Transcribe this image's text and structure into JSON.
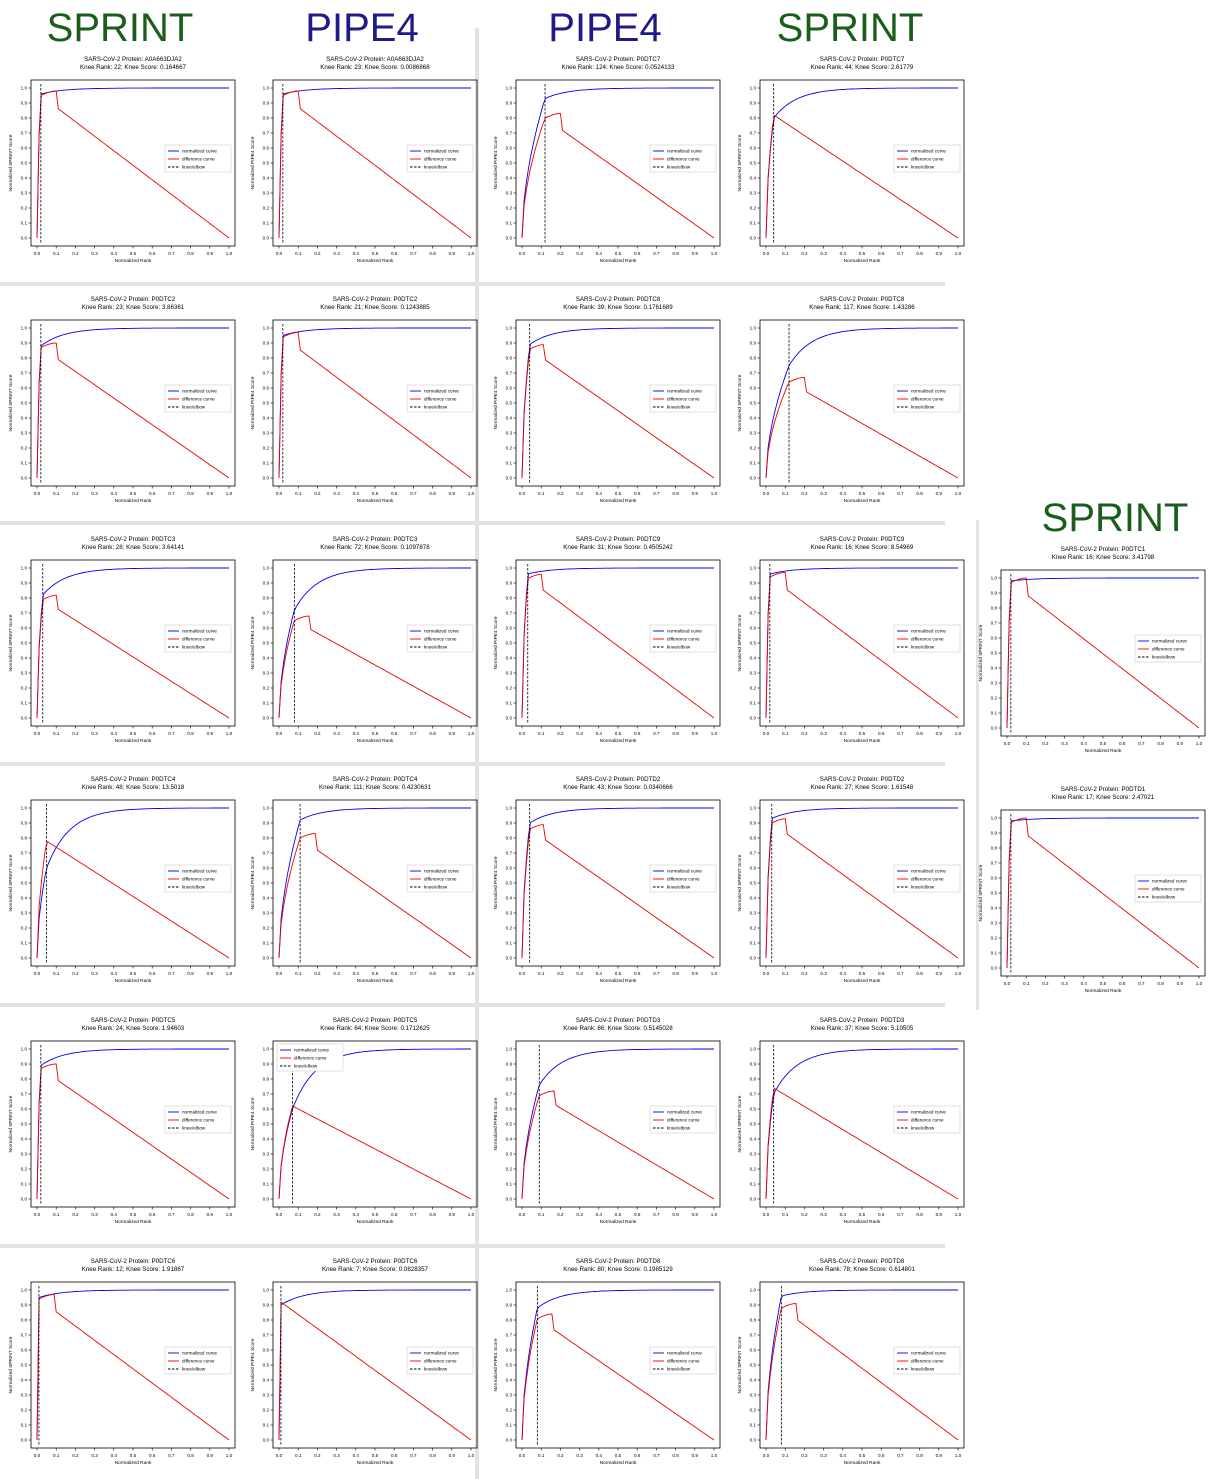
{
  "column_headers": [
    {
      "label": "SPRINT",
      "color": "#1b5e1b"
    },
    {
      "label": "PIPE4",
      "color": "#1f1a8a"
    },
    {
      "label": "PIPE4",
      "color": "#1f1a8a"
    },
    {
      "label": "SPRINT",
      "color": "#1b5e1b"
    },
    {
      "label": "SPRINT",
      "color": "#1b5e1b"
    }
  ],
  "colors": {
    "normalized": "#0000ee",
    "difference": "#ee0000",
    "knee": "#000000"
  },
  "legend": [
    "normalized curve",
    "difference curve",
    "knee/elbow"
  ],
  "xlabel": "Normalized Rank",
  "x_ticks": [
    "0.0",
    "0.1",
    "0.2",
    "0.3",
    "0.4",
    "0.5",
    "0.6",
    "0.7",
    "0.8",
    "0.9",
    "1.0"
  ],
  "y_ticks": [
    "0.0",
    "0.1",
    "0.2",
    "0.3",
    "0.4",
    "0.5",
    "0.6",
    "0.7",
    "0.8",
    "0.9",
    "1.0"
  ],
  "chart_data": [
    {
      "type": "line",
      "title": "SARS-CoV-2 Protein: A0A663DJA2",
      "subtitle": "Knee Rank: 22; Knee Score: 0.164667",
      "ylabel": "Normalized SPRINT Score",
      "knee_x": 0.02,
      "diff_peak": 0.95,
      "norm_at_knee": 0.96,
      "legend_position": "center-right"
    },
    {
      "type": "line",
      "title": "SARS-CoV-2 Protein: A0A663DJA2",
      "subtitle": "Knee Rank: 23; Knee Score: 0.0086868",
      "ylabel": "Normalized PIPE4 Score",
      "knee_x": 0.02,
      "diff_peak": 0.95,
      "norm_at_knee": 0.96,
      "legend_position": "center-right"
    },
    {
      "type": "line",
      "title": "SARS-CoV-2 Protein: P0DTC7",
      "subtitle": "Knee Rank: 124; Knee Score: 0.0524133",
      "ylabel": "Normalized PIPE4 Score",
      "knee_x": 0.12,
      "diff_peak": 0.8,
      "norm_at_knee": 0.93,
      "legend_position": "center-right"
    },
    {
      "type": "line",
      "title": "SARS-CoV-2 Protein: P0DTC7",
      "subtitle": "Knee Rank: 44; Knee Score: 2.61779",
      "ylabel": "Normalized SPRINT Score",
      "knee_x": 0.04,
      "diff_peak": 0.82,
      "norm_at_knee": 0.8,
      "legend_position": "center-right"
    },
    {
      "type": "line",
      "title": "SARS-CoV-2 Protein: P0DTC2",
      "subtitle": "Knee Rank: 23; Knee Score: 3.86361",
      "ylabel": "Normalized SPRINT Score",
      "knee_x": 0.02,
      "diff_peak": 0.87,
      "norm_at_knee": 0.88,
      "legend_position": "center-right"
    },
    {
      "type": "line",
      "title": "SARS-CoV-2 Protein: P0DTC2",
      "subtitle": "Knee Rank: 21; Knee Score: 0.1243885",
      "ylabel": "Normalized PIPE4 Score",
      "knee_x": 0.02,
      "diff_peak": 0.94,
      "norm_at_knee": 0.95,
      "legend_position": "center-right"
    },
    {
      "type": "line",
      "title": "SARS-CoV-2 Protein: P0DTC8",
      "subtitle": "Knee Rank: 39; Knee Score: 0.1761689",
      "ylabel": "Normalized PIPE4 Score",
      "knee_x": 0.04,
      "diff_peak": 0.86,
      "norm_at_knee": 0.89,
      "legend_position": "center-right"
    },
    {
      "type": "line",
      "title": "SARS-CoV-2 Protein: P0DTC8",
      "subtitle": "Knee Rank: 117; Knee Score: 1.43286",
      "ylabel": "Normalized SPRINT Score",
      "knee_x": 0.12,
      "diff_peak": 0.64,
      "norm_at_knee": 0.75,
      "legend_position": "center-right"
    },
    {
      "type": "line",
      "title": "SARS-CoV-2 Protein: P0DTC3",
      "subtitle": "Knee Rank: 28; Knee Score: 3.64141",
      "ylabel": "Normalized SPRINT Score",
      "knee_x": 0.03,
      "diff_peak": 0.79,
      "norm_at_knee": 0.82,
      "legend_position": "center-right"
    },
    {
      "type": "line",
      "title": "SARS-CoV-2 Protein: P0DTC3",
      "subtitle": "Knee Rank: 72; Knee Score: 0.1097878",
      "ylabel": "Normalized PIPE4 Score",
      "knee_x": 0.08,
      "diff_peak": 0.65,
      "norm_at_knee": 0.72,
      "legend_position": "center-right"
    },
    {
      "type": "line",
      "title": "SARS-CoV-2 Protein: P0DTC9",
      "subtitle": "Knee Rank: 31; Knee Score: 0.4505242",
      "ylabel": "Normalized PIPE4 Score",
      "knee_x": 0.03,
      "diff_peak": 0.93,
      "norm_at_knee": 0.96,
      "legend_position": "center-right"
    },
    {
      "type": "line",
      "title": "SARS-CoV-2 Protein: P0DTC9",
      "subtitle": "Knee Rank: 16; Knee Score: 8.54969",
      "ylabel": "Normalized SPRINT Score",
      "knee_x": 0.02,
      "diff_peak": 0.94,
      "norm_at_knee": 0.96,
      "legend_position": "center-right"
    },
    {
      "type": "line",
      "title": "SARS-CoV-2 Protein: P0DTC4",
      "subtitle": "Knee Rank: 48; Knee Score: 13.5018",
      "ylabel": "Normalized SPRINT Score",
      "knee_x": 0.05,
      "diff_peak": 0.78,
      "norm_at_knee": 0.6,
      "legend_position": "center-right"
    },
    {
      "type": "line",
      "title": "SARS-CoV-2 Protein: P0DTC4",
      "subtitle": "Knee Rank: 111; Knee Score: 0.4230631",
      "ylabel": "Normalized PIPE4 Score",
      "knee_x": 0.11,
      "diff_peak": 0.8,
      "norm_at_knee": 0.92,
      "legend_position": "center-right"
    },
    {
      "type": "line",
      "title": "SARS-CoV-2 Protein: P0DTD2",
      "subtitle": "Knee Rank: 43; Knee Score: 0.0340666",
      "ylabel": "Normalized PIPE4 Score",
      "knee_x": 0.04,
      "diff_peak": 0.86,
      "norm_at_knee": 0.9,
      "legend_position": "center-right"
    },
    {
      "type": "line",
      "title": "SARS-CoV-2 Protein: P0DTD2",
      "subtitle": "Knee Rank: 27; Knee Score: 1.61548",
      "ylabel": "Normalized SPRINT Score",
      "knee_x": 0.03,
      "diff_peak": 0.9,
      "norm_at_knee": 0.93,
      "legend_position": "center-right"
    },
    {
      "type": "line",
      "title": "SARS-CoV-2 Protein: P0DTC5",
      "subtitle": "Knee Rank: 24; Knee Score: 1.94603",
      "ylabel": "Normalized SPRINT Score",
      "knee_x": 0.02,
      "diff_peak": 0.87,
      "norm_at_knee": 0.89,
      "legend_position": "center-right"
    },
    {
      "type": "line",
      "title": "SARS-CoV-2 Protein: P0DTC5",
      "subtitle": "Knee Rank: 64; Knee Score: 0.1712625",
      "ylabel": "Normalized PIPE4 Score",
      "knee_x": 0.07,
      "diff_peak": 0.62,
      "norm_at_knee": 0.6,
      "legend_position": "top-left"
    },
    {
      "type": "line",
      "title": "SARS-CoV-2 Protein: P0DTD3",
      "subtitle": "Knee Rank: 86; Knee Score: 0.5145028",
      "ylabel": "Normalized PIPE4 Score",
      "knee_x": 0.09,
      "diff_peak": 0.69,
      "norm_at_knee": 0.76,
      "legend_position": "center-right"
    },
    {
      "type": "line",
      "title": "SARS-CoV-2 Protein: P0DTD3",
      "subtitle": "Knee Rank: 37; Knee Score: 5.10505",
      "ylabel": "Normalized SPRINT Score",
      "knee_x": 0.04,
      "diff_peak": 0.74,
      "norm_at_knee": 0.7,
      "legend_position": "center-right"
    },
    {
      "type": "line",
      "title": "SARS-CoV-2 Protein: P0DTC6",
      "subtitle": "Knee Rank: 12; Knee Score: 1.91867",
      "ylabel": "Normalized SPRINT Score",
      "knee_x": 0.01,
      "diff_peak": 0.94,
      "norm_at_knee": 0.95,
      "legend_position": "center-right"
    },
    {
      "type": "line",
      "title": "SARS-CoV-2 Protein: P0DTC6",
      "subtitle": "Knee Rank: 7; Knee Score: 0.0828357",
      "ylabel": "Normalized PIPE4 Score",
      "knee_x": 0.01,
      "diff_peak": 0.92,
      "norm_at_knee": 0.9,
      "legend_position": "center-right"
    },
    {
      "type": "line",
      "title": "SARS-CoV-2 Protein: P0DTD8",
      "subtitle": "Knee Rank: 80; Knee Score: 0.1985129",
      "ylabel": "Normalized PIPE4 Score",
      "knee_x": 0.08,
      "diff_peak": 0.81,
      "norm_at_knee": 0.88,
      "legend_position": "center-right"
    },
    {
      "type": "line",
      "title": "SARS-CoV-2 Protein: P0DTD8",
      "subtitle": "Knee Rank: 78; Knee Score: 0.614801",
      "ylabel": "Normalized SPRINT Score",
      "knee_x": 0.08,
      "diff_peak": 0.88,
      "norm_at_knee": 0.96,
      "legend_position": "center-right"
    },
    {
      "type": "line",
      "title": "SARS-CoV-2 Protein: P0DTC1",
      "subtitle": "Knee Rank: 16; Knee Score: 3.41798",
      "ylabel": "Normalized SPRINT Score",
      "knee_x": 0.02,
      "diff_peak": 0.97,
      "norm_at_knee": 0.98,
      "legend_position": "center-right"
    },
    {
      "type": "line",
      "title": "SARS-CoV-2 Protein: P0DTD1",
      "subtitle": "Knee Rank: 17; Knee Score: 2.47021",
      "ylabel": "Normalized SPRINT Score",
      "knee_x": 0.02,
      "diff_peak": 0.97,
      "norm_at_knee": 0.98,
      "legend_position": "center-right"
    }
  ]
}
